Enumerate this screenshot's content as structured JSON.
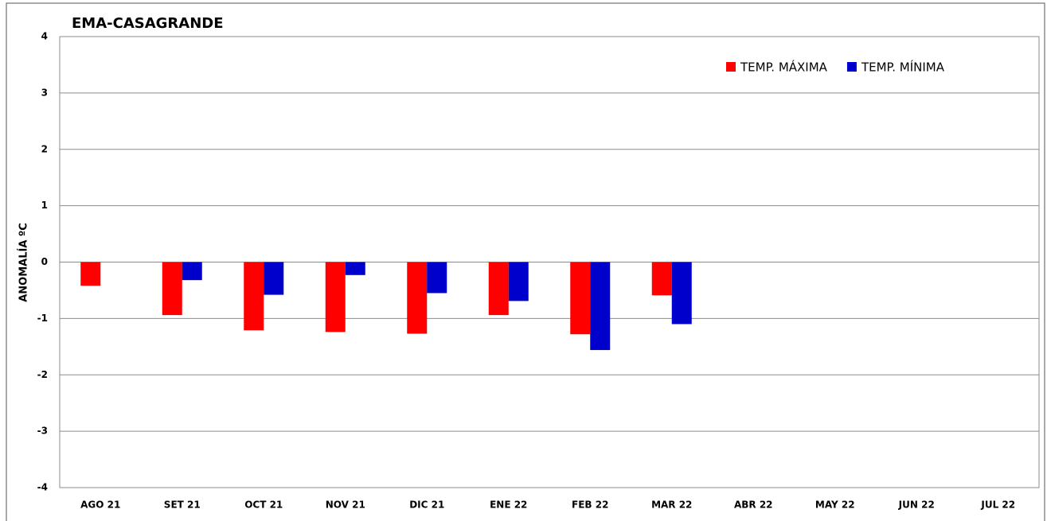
{
  "chart_data": {
    "type": "bar",
    "title": "EMA-CASAGRANDE",
    "y_label": "ANOMALÍA ºC",
    "categories": [
      "AGO 21",
      "SET 21",
      "OCT 21",
      "NOV 21",
      "DIC 21",
      "ENE 22",
      "FEB 22",
      "MAR 22",
      "ABR 22",
      "MAY 22",
      "JUN 22",
      "JUL 22"
    ],
    "series": [
      {
        "name": "TEMP. MÁXIMA",
        "color": "#ff0000",
        "values": [
          -0.42,
          -0.94,
          -1.21,
          -1.24,
          -1.27,
          -0.94,
          -1.28,
          -0.59,
          null,
          null,
          null,
          null
        ]
      },
      {
        "name": "TEMP. MÍNIMA",
        "color": "#0000cc",
        "values": [
          null,
          -0.32,
          -0.58,
          -0.23,
          -0.55,
          -0.69,
          -1.56,
          -1.1,
          null,
          null,
          null,
          null
        ]
      }
    ],
    "ylim": [
      -4,
      4
    ],
    "yticks": [
      -4,
      -3,
      -2,
      -1,
      0,
      1,
      2,
      3,
      4
    ],
    "grid": true,
    "legend": "top-right"
  }
}
